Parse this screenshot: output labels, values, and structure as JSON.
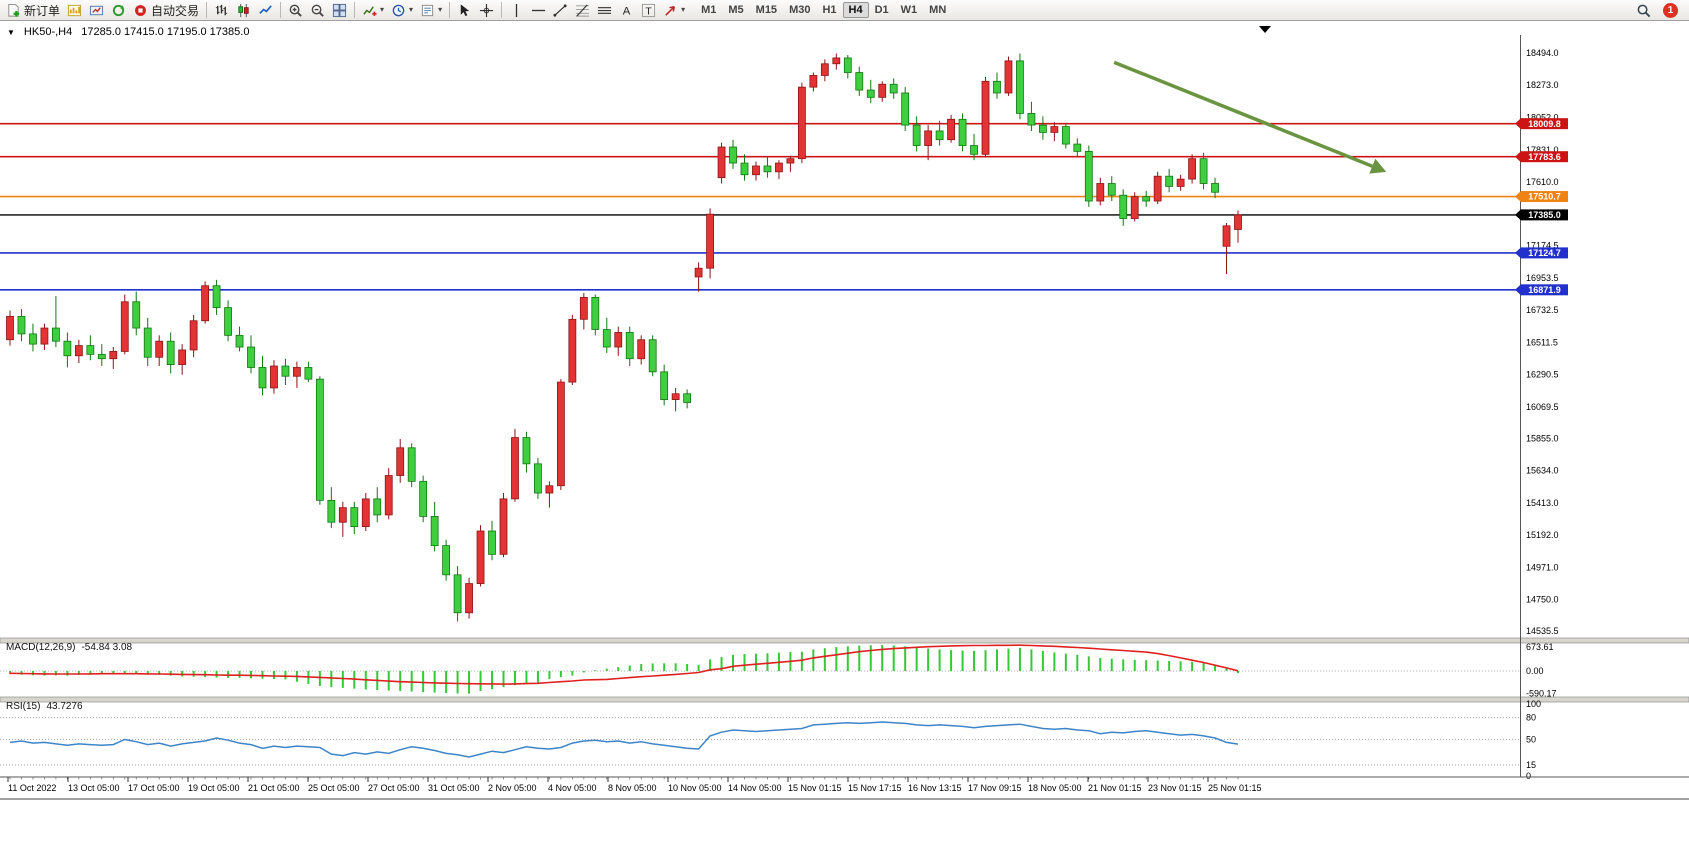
{
  "toolbar": {
    "caret_glyph": "▾",
    "notification_count": "1",
    "buttons": [
      {
        "name": "new-order",
        "icon": "doc-plus",
        "label": "新订单"
      },
      {
        "name": "new-chart",
        "icon": "chart-yellow"
      },
      {
        "name": "profiles",
        "icon": "profiles"
      },
      {
        "name": "refresh",
        "icon": "refresh"
      },
      {
        "name": "autotrading",
        "icon": "autotrading",
        "label": "自动交易"
      },
      {
        "sep": true
      },
      {
        "name": "bar-chart",
        "icon": "bars"
      },
      {
        "name": "candlestick-chart",
        "icon": "candles"
      },
      {
        "name": "line-chart",
        "icon": "line"
      },
      {
        "sep": true
      },
      {
        "name": "zoom-in",
        "icon": "zoom-in"
      },
      {
        "name": "zoom-out",
        "icon": "zoom-out"
      },
      {
        "name": "tile-windows",
        "icon": "tile"
      },
      {
        "sep": true
      },
      {
        "name": "indicators",
        "icon": "indicators",
        "caret": true
      },
      {
        "name": "periods",
        "icon": "clock",
        "caret": true
      },
      {
        "name": "templates",
        "icon": "template",
        "caret": true
      },
      {
        "sep": true
      },
      {
        "name": "cursor",
        "icon": "cursor"
      },
      {
        "name": "crosshair",
        "icon": "crosshair"
      },
      {
        "sep": true
      },
      {
        "name": "vertical-line",
        "icon": "vline"
      },
      {
        "name": "horizontal-line",
        "icon": "hline"
      },
      {
        "name": "trendline",
        "icon": "trendline"
      },
      {
        "name": "fibonacci",
        "icon": "fib"
      },
      {
        "name": "equidistant-lines",
        "icon": "channel"
      },
      {
        "name": "text",
        "icon": "text-a"
      },
      {
        "name": "text-label",
        "icon": "text-t"
      },
      {
        "name": "arrows",
        "icon": "arrow",
        "caret": true
      }
    ],
    "timeframes": [
      "M1",
      "M5",
      "M15",
      "M30",
      "H1",
      "H4",
      "D1",
      "W1",
      "MN"
    ],
    "active_timeframe": "H4"
  },
  "chart": {
    "collapse_glyph": "▼",
    "symbol_tf": "HK50-,H4",
    "ohlc_text": "17285.0 17415.0 17195.0 17385.0"
  },
  "chart_data": {
    "type": "candlestick",
    "symbol": "HK50-",
    "timeframe": "H4",
    "current_ohlc": {
      "open": 17285.0,
      "high": 17415.0,
      "low": 17195.0,
      "close": 17385.0
    },
    "bull_color": "#e23434",
    "bull_stroke": "#8d1414",
    "bear_color": "#3fce3f",
    "bear_stroke": "#117711",
    "y_domain": [
      14494,
      18576
    ],
    "y_axis_labels": [
      "18494.0",
      "18273.0",
      "18052.0",
      "17831.0",
      "17610.0",
      "17389.0",
      "17174.5",
      "16953.5",
      "16732.5",
      "16511.5",
      "16290.5",
      "16069.5",
      "15855.0",
      "15634.0",
      "15413.0",
      "15192.0",
      "14971.0",
      "14750.0",
      "14535.5"
    ],
    "price_lines": [
      {
        "label": "18009.8",
        "price": 18009.8,
        "color": "#cc1414",
        "name": "resistance-line-18009"
      },
      {
        "label": "17783.6",
        "price": 17783.6,
        "color": "#cc1414",
        "name": "resistance-line-17783"
      },
      {
        "label": "17510.7",
        "price": 17510.7,
        "color": "#ef8414",
        "name": "pivot-line-17510"
      },
      {
        "label": "17385.0",
        "price": 17385.0,
        "color": "#000000",
        "name": "current-price-line"
      },
      {
        "label": "17124.7",
        "price": 17124.7,
        "color": "#2230cc",
        "name": "support-line-17124"
      },
      {
        "label": "16871.9",
        "price": 16871.9,
        "color": "#2230cc",
        "name": "support-line-16871"
      }
    ],
    "trend_arrow": {
      "x1_frac": 0.733,
      "price1": 18430,
      "x2_frac": 0.912,
      "price2": 17680,
      "color": "#6a9440"
    },
    "x_labels": [
      "11 Oct 2022",
      "13 Oct 05:00",
      "17 Oct 05:00",
      "19 Oct 05:00",
      "21 Oct 05:00",
      "25 Oct 05:00",
      "27 Oct 05:00",
      "31 Oct 05:00",
      "2 Nov 05:00",
      "4 Nov 05:00",
      "8 Nov 05:00",
      "10 Nov 05:00",
      "14 Nov 05:00",
      "15 Nov 01:15",
      "15 Nov 17:15",
      "16 Nov 13:15",
      "17 Nov 09:15",
      "18 Nov 05:00",
      "21 Nov 01:15",
      "23 Nov 01:15",
      "25 Nov 01:15"
    ],
    "candles": [
      [
        16530,
        16730,
        16490,
        16690
      ],
      [
        16690,
        16740,
        16520,
        16570
      ],
      [
        16570,
        16640,
        16450,
        16500
      ],
      [
        16500,
        16640,
        16460,
        16610
      ],
      [
        16610,
        16830,
        16480,
        16520
      ],
      [
        16520,
        16580,
        16340,
        16420
      ],
      [
        16420,
        16530,
        16370,
        16490
      ],
      [
        16490,
        16560,
        16390,
        16430
      ],
      [
        16430,
        16500,
        16350,
        16400
      ],
      [
        16400,
        16480,
        16330,
        16450
      ],
      [
        16450,
        16840,
        16430,
        16790
      ],
      [
        16790,
        16860,
        16560,
        16610
      ],
      [
        16610,
        16680,
        16350,
        16410
      ],
      [
        16410,
        16560,
        16350,
        16520
      ],
      [
        16520,
        16580,
        16300,
        16360
      ],
      [
        16360,
        16500,
        16290,
        16460
      ],
      [
        16460,
        16700,
        16410,
        16660
      ],
      [
        16660,
        16930,
        16640,
        16900
      ],
      [
        16900,
        16940,
        16700,
        16750
      ],
      [
        16750,
        16800,
        16520,
        16560
      ],
      [
        16560,
        16620,
        16450,
        16480
      ],
      [
        16480,
        16560,
        16300,
        16340
      ],
      [
        16340,
        16420,
        16150,
        16200
      ],
      [
        16200,
        16390,
        16160,
        16350
      ],
      [
        16350,
        16400,
        16220,
        16280
      ],
      [
        16280,
        16380,
        16200,
        16340
      ],
      [
        16340,
        16380,
        16240,
        16260
      ],
      [
        16260,
        16280,
        15400,
        15430
      ],
      [
        15430,
        15520,
        15240,
        15280
      ],
      [
        15280,
        15420,
        15180,
        15380
      ],
      [
        15380,
        15420,
        15200,
        15250
      ],
      [
        15250,
        15480,
        15220,
        15440
      ],
      [
        15440,
        15520,
        15280,
        15330
      ],
      [
        15330,
        15650,
        15300,
        15600
      ],
      [
        15600,
        15850,
        15550,
        15790
      ],
      [
        15790,
        15820,
        15520,
        15560
      ],
      [
        15560,
        15600,
        15280,
        15320
      ],
      [
        15320,
        15420,
        15080,
        15120
      ],
      [
        15120,
        15160,
        14880,
        14920
      ],
      [
        14920,
        14980,
        14600,
        14660
      ],
      [
        14660,
        14900,
        14620,
        14860
      ],
      [
        14860,
        15260,
        14840,
        15220
      ],
      [
        15220,
        15290,
        15020,
        15060
      ],
      [
        15060,
        15480,
        15040,
        15440
      ],
      [
        15440,
        15920,
        15420,
        15860
      ],
      [
        15860,
        15900,
        15620,
        15680
      ],
      [
        15680,
        15720,
        15440,
        15480
      ],
      [
        15480,
        15560,
        15380,
        15530
      ],
      [
        15530,
        16260,
        15500,
        16240
      ],
      [
        16240,
        16700,
        16220,
        16670
      ],
      [
        16670,
        16850,
        16600,
        16820
      ],
      [
        16820,
        16840,
        16560,
        16600
      ],
      [
        16600,
        16680,
        16440,
        16480
      ],
      [
        16480,
        16620,
        16420,
        16580
      ],
      [
        16580,
        16620,
        16350,
        16400
      ],
      [
        16400,
        16560,
        16360,
        16530
      ],
      [
        16530,
        16560,
        16280,
        16310
      ],
      [
        16310,
        16360,
        16080,
        16120
      ],
      [
        16120,
        16200,
        16040,
        16160
      ],
      [
        16160,
        16190,
        16060,
        16100
      ],
      [
        16960,
        17060,
        16860,
        17020
      ],
      [
        17020,
        17430,
        16950,
        17390
      ],
      [
        17640,
        17880,
        17600,
        17850
      ],
      [
        17850,
        17900,
        17700,
        17740
      ],
      [
        17740,
        17800,
        17620,
        17660
      ],
      [
        17660,
        17750,
        17620,
        17720
      ],
      [
        17720,
        17780,
        17640,
        17680
      ],
      [
        17680,
        17760,
        17630,
        17740
      ],
      [
        17740,
        17790,
        17680,
        17770
      ],
      [
        17770,
        18290,
        17740,
        18260
      ],
      [
        18260,
        18360,
        18230,
        18340
      ],
      [
        18340,
        18450,
        18300,
        18420
      ],
      [
        18420,
        18490,
        18380,
        18460
      ],
      [
        18460,
        18480,
        18320,
        18360
      ],
      [
        18360,
        18400,
        18200,
        18240
      ],
      [
        18240,
        18310,
        18150,
        18190
      ],
      [
        18190,
        18300,
        18160,
        18280
      ],
      [
        18280,
        18320,
        18180,
        18220
      ],
      [
        18220,
        18260,
        17960,
        18000
      ],
      [
        18000,
        18060,
        17820,
        17860
      ],
      [
        17860,
        18000,
        17760,
        17960
      ],
      [
        17960,
        18030,
        17860,
        17900
      ],
      [
        17900,
        18070,
        17880,
        18040
      ],
      [
        18040,
        18080,
        17820,
        17860
      ],
      [
        17860,
        17940,
        17760,
        17800
      ],
      [
        17800,
        18330,
        17780,
        18300
      ],
      [
        18300,
        18360,
        18180,
        18220
      ],
      [
        18220,
        18470,
        18200,
        18440
      ],
      [
        18440,
        18490,
        18040,
        18080
      ],
      [
        18080,
        18160,
        17960,
        18000
      ],
      [
        18000,
        18060,
        17900,
        17950
      ],
      [
        17950,
        18020,
        17890,
        17990
      ],
      [
        17990,
        18010,
        17840,
        17870
      ],
      [
        17870,
        17910,
        17780,
        17820
      ],
      [
        17820,
        17860,
        17440,
        17480
      ],
      [
        17480,
        17640,
        17450,
        17600
      ],
      [
        17600,
        17650,
        17480,
        17520
      ],
      [
        17520,
        17560,
        17310,
        17360
      ],
      [
        17360,
        17540,
        17340,
        17510
      ],
      [
        17510,
        17550,
        17440,
        17480
      ],
      [
        17480,
        17680,
        17460,
        17650
      ],
      [
        17650,
        17700,
        17540,
        17580
      ],
      [
        17580,
        17660,
        17550,
        17630
      ],
      [
        17630,
        17800,
        17600,
        17770
      ],
      [
        17770,
        17810,
        17560,
        17600
      ],
      [
        17600,
        17640,
        17500,
        17540
      ],
      [
        17170,
        17330,
        16980,
        17310
      ],
      [
        17285,
        17415,
        17195,
        17385
      ]
    ],
    "macd": {
      "label": "MACD(12,26,9)",
      "values_label": "-54.84 3.08",
      "histogram_color": "#35c935",
      "signal_color": "#e02020",
      "axis_labels": [
        "673.61",
        "0.00",
        "-590.17"
      ],
      "range": {
        "min": -650,
        "max": 700
      },
      "histogram": [
        -80,
        -95,
        -110,
        -120,
        -115,
        -120,
        -100,
        -80,
        -65,
        -60,
        -60,
        -70,
        -85,
        -100,
        -120,
        -140,
        -150,
        -160,
        -170,
        -180,
        -180,
        -190,
        -200,
        -210,
        -220,
        -280,
        -340,
        -390,
        -420,
        -440,
        -460,
        -480,
        -495,
        -510,
        -520,
        -535,
        -550,
        -560,
        -575,
        -585,
        -590,
        -520,
        -470,
        -420,
        -370,
        -330,
        -300,
        -210,
        -160,
        -120,
        -40,
        20,
        60,
        100,
        140,
        180,
        195,
        200,
        200,
        180,
        160,
        300,
        360,
        420,
        440,
        450,
        460,
        475,
        490,
        500,
        560,
        590,
        620,
        640,
        660,
        668,
        673,
        660,
        640,
        610,
        580,
        560,
        540,
        530,
        520,
        540,
        560,
        580,
        600,
        560,
        520,
        480,
        450,
        420,
        380,
        340,
        320,
        300,
        290,
        280,
        270,
        260,
        250,
        240,
        200,
        160,
        80,
        -55
      ],
      "signal": [
        -60,
        -65,
        -70,
        -75,
        -78,
        -80,
        -78,
        -75,
        -72,
        -70,
        -70,
        -72,
        -75,
        -80,
        -85,
        -90,
        -94,
        -98,
        -104,
        -110,
        -110,
        -116,
        -122,
        -130,
        -136,
        -142,
        -155,
        -168,
        -180,
        -196,
        -212,
        -230,
        -246,
        -262,
        -280,
        -290,
        -300,
        -310,
        -318,
        -325,
        -330,
        -334,
        -337,
        -340,
        -335,
        -328,
        -320,
        -300,
        -280,
        -260,
        -235,
        -228,
        -220,
        -196,
        -172,
        -150,
        -130,
        -110,
        -90,
        -65,
        -40,
        30,
        60,
        120,
        150,
        175,
        200,
        226,
        252,
        280,
        340,
        380,
        420,
        460,
        500,
        530,
        560,
        580,
        600,
        615,
        630,
        640,
        650,
        655,
        660,
        662,
        665,
        667,
        668,
        660,
        650,
        640,
        625,
        610,
        590,
        570,
        550,
        530,
        510,
        490,
        450,
        400,
        340,
        280,
        220,
        150,
        80,
        3
      ]
    },
    "rsi": {
      "label": "RSI(15)",
      "value_label": "43.7276",
      "line_color": "#3d85c8",
      "axis_labels": [
        "100",
        "80",
        "50",
        "15",
        "0"
      ],
      "dashed_levels": [
        80,
        50,
        15
      ],
      "range": {
        "min": 0,
        "max": 100
      },
      "values": [
        46,
        48,
        45,
        46,
        44,
        42,
        44,
        43,
        42,
        43,
        50,
        47,
        43,
        45,
        41,
        44,
        46,
        48,
        52,
        49,
        45,
        43,
        38,
        41,
        39,
        41,
        40,
        39,
        30,
        28,
        32,
        30,
        33,
        31,
        36,
        40,
        38,
        35,
        31,
        29,
        26,
        30,
        34,
        32,
        36,
        40,
        38,
        37,
        39,
        45,
        48,
        49,
        47,
        48,
        45,
        47,
        44,
        42,
        40,
        38,
        37,
        55,
        60,
        63,
        62,
        61,
        62,
        63,
        64,
        65,
        70,
        71,
        72,
        73,
        72,
        73,
        74,
        73,
        72,
        70,
        69,
        70,
        69,
        68,
        66,
        68,
        69,
        70,
        71,
        68,
        65,
        64,
        65,
        63,
        62,
        58,
        60,
        59,
        61,
        62,
        60,
        58,
        56,
        57,
        55,
        52,
        46,
        43.73
      ]
    }
  }
}
